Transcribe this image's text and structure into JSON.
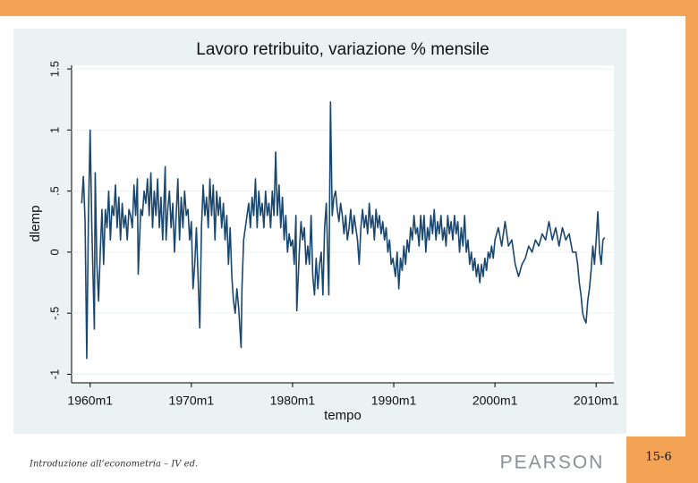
{
  "chart_data": {
    "type": "line",
    "title": "Lavoro retribuito, variazione % mensile",
    "xlabel": "tempo",
    "ylabel": "dlemp",
    "color": "#1a476f",
    "grid": true,
    "xlim": [
      -22,
      621
    ],
    "ylim": [
      -1.07,
      1.53
    ],
    "xticks": [
      {
        "value": 0,
        "label": "1960m1"
      },
      {
        "value": 120,
        "label": "1970m1"
      },
      {
        "value": 240,
        "label": "1980m1"
      },
      {
        "value": 360,
        "label": "1990m1"
      },
      {
        "value": 480,
        "label": "2000m1"
      },
      {
        "value": 600,
        "label": "2010m1"
      }
    ],
    "yticks": [
      {
        "value": -1,
        "label": "-1"
      },
      {
        "value": -0.5,
        "label": "-.5"
      },
      0,
      {
        "value": 0.5,
        "label": ".5"
      },
      1,
      1.5
    ],
    "x": [
      -10,
      -8,
      -6,
      -4,
      -2,
      0,
      2,
      5,
      6,
      8,
      10,
      12,
      14,
      16,
      18,
      20,
      22,
      24,
      26,
      28,
      30,
      32,
      34,
      36,
      38,
      40,
      42,
      44,
      46,
      48,
      50,
      52,
      54,
      56,
      57,
      60,
      62,
      64,
      66,
      68,
      70,
      72,
      74,
      76,
      78,
      80,
      82,
      84,
      86,
      89,
      90,
      92,
      94,
      96,
      98,
      100,
      102,
      104,
      106,
      108,
      110,
      112,
      114,
      116,
      118,
      120,
      122,
      124,
      126,
      130,
      132,
      134,
      136,
      138,
      140,
      142,
      144,
      146,
      148,
      150,
      152,
      154,
      156,
      158,
      160,
      162,
      164,
      166,
      168,
      170,
      172,
      174,
      176,
      179,
      180,
      182,
      184,
      186,
      188,
      190,
      192,
      194,
      196,
      198,
      200,
      202,
      204,
      206,
      208,
      210,
      212,
      214,
      216,
      218,
      220,
      222,
      224,
      226,
      228,
      230,
      232,
      234,
      236,
      238,
      240,
      242,
      244,
      245,
      248,
      250,
      252,
      254,
      256,
      258,
      260,
      262,
      264,
      266,
      268,
      270,
      272,
      274,
      276,
      278,
      280,
      283,
      285,
      287,
      289,
      291,
      293,
      295,
      297,
      299,
      301,
      303,
      305,
      307,
      309,
      311,
      313,
      315,
      317,
      319,
      321,
      323,
      325,
      327,
      329,
      331,
      333,
      335,
      337,
      339,
      341,
      343,
      345,
      347,
      349,
      351,
      353,
      355,
      357,
      359,
      360,
      362,
      364,
      366,
      368,
      370,
      372,
      374,
      376,
      378,
      380,
      382,
      384,
      386,
      388,
      390,
      392,
      394,
      396,
      398,
      400,
      402,
      404,
      406,
      408,
      410,
      412,
      414,
      416,
      418,
      420,
      422,
      424,
      426,
      428,
      430,
      432,
      434,
      436,
      438,
      440,
      442,
      444,
      446,
      448,
      450,
      452,
      454,
      456,
      458,
      460,
      462,
      464,
      466,
      468,
      470,
      472,
      474,
      476,
      478,
      480,
      484,
      488,
      492,
      496,
      500,
      504,
      508,
      512,
      516,
      520,
      524,
      528,
      532,
      536,
      540,
      544,
      548,
      552,
      556,
      560,
      564,
      568,
      572,
      576,
      578,
      580,
      582,
      584,
      586,
      588,
      590,
      592,
      594,
      596,
      598,
      600,
      602,
      604,
      606,
      608,
      610
    ],
    "values": [
      0.4,
      0.62,
      0.25,
      -0.87,
      0.3,
      1.0,
      0.2,
      -0.63,
      0.65,
      -0.1,
      -0.4,
      0.0,
      0.35,
      -0.1,
      0.35,
      0.2,
      0.5,
      0.1,
      0.38,
      0.3,
      0.55,
      0.2,
      0.45,
      0.1,
      0.4,
      0.2,
      0.3,
      0.1,
      0.35,
      0.3,
      0.2,
      0.55,
      0.3,
      0.6,
      -0.18,
      0.35,
      0.3,
      0.5,
      0.4,
      0.6,
      0.3,
      0.65,
      0.2,
      0.5,
      0.3,
      0.6,
      0.2,
      0.45,
      0.1,
      0.7,
      0.1,
      0.35,
      0.5,
      0.2,
      0.4,
      0.0,
      0.3,
      0.6,
      0.1,
      0.45,
      0.2,
      0.5,
      0.3,
      0.35,
      0.1,
      0.25,
      -0.3,
      -0.1,
      0.2,
      -0.62,
      0.2,
      0.55,
      0.3,
      0.45,
      0.2,
      0.6,
      0.3,
      0.55,
      0.1,
      0.5,
      0.3,
      0.45,
      0.2,
      0.4,
      0.1,
      0.3,
      -0.1,
      0.2,
      -0.2,
      -0.4,
      -0.5,
      -0.3,
      -0.45,
      -0.78,
      -0.3,
      0.1,
      0.2,
      0.3,
      0.4,
      0.2,
      0.45,
      0.3,
      0.6,
      0.2,
      0.5,
      0.3,
      0.4,
      0.2,
      0.5,
      0.3,
      0.4,
      0.2,
      0.5,
      0.3,
      0.82,
      0.3,
      0.55,
      0.2,
      0.45,
      0.1,
      0.3,
      0.0,
      0.15,
      0.05,
      0.1,
      -0.1,
      0.3,
      -0.48,
      0.0,
      0.25,
      0.1,
      0.2,
      -0.1,
      0.05,
      -0.1,
      0.3,
      -0.2,
      -0.35,
      -0.05,
      -0.3,
      -0.1,
      0.0,
      -0.35,
      0.2,
      0.4,
      -0.35,
      1.23,
      0.3,
      0.45,
      0.5,
      0.35,
      0.25,
      0.4,
      0.3,
      0.15,
      0.3,
      0.1,
      0.2,
      0.35,
      0.15,
      0.3,
      0.2,
      0.1,
      -0.1,
      0.2,
      0.35,
      0.2,
      0.3,
      0.15,
      0.4,
      0.2,
      0.3,
      0.1,
      0.35,
      0.2,
      0.3,
      0.15,
      0.25,
      0.1,
      0.2,
      0.0,
      0.1,
      -0.1,
      -0.05,
      -0.1,
      -0.2,
      0.0,
      -0.3,
      -0.05,
      -0.15,
      0.05,
      -0.1,
      0.1,
      0.0,
      0.2,
      0.1,
      0.3,
      0.15,
      0.2,
      0.05,
      0.3,
      0.1,
      0.3,
      0.0,
      0.2,
      0.1,
      0.3,
      0.15,
      0.35,
      0.1,
      0.25,
      0.15,
      0.3,
      0.1,
      0.2,
      0.05,
      0.3,
      0.15,
      0.25,
      0.1,
      0.3,
      0.15,
      0.25,
      0.0,
      0.2,
      0.05,
      0.3,
      0.0,
      0.1,
      -0.1,
      0.0,
      -0.15,
      -0.05,
      -0.2,
      -0.1,
      -0.25,
      -0.1,
      -0.2,
      -0.05,
      -0.15,
      0.0,
      -0.05,
      0.05,
      -0.05,
      0.1,
      0.2,
      0.05,
      0.25,
      0.05,
      0.1,
      -0.1,
      -0.2,
      -0.1,
      -0.05,
      0.05,
      0.0,
      0.1,
      0.05,
      0.15,
      0.1,
      0.25,
      0.1,
      0.2,
      0.05,
      0.2,
      0.1,
      0.15,
      0.0,
      0.0,
      -0.1,
      -0.25,
      -0.35,
      -0.5,
      -0.55,
      -0.58,
      -0.4,
      -0.3,
      -0.15,
      0.05,
      -0.1,
      0.1,
      0.33,
      0.0,
      -0.1,
      0.1,
      0.12
    ]
  },
  "footer": {
    "left": "Introduzione all’econometria – IV ed.",
    "brand": "PEARSON",
    "page": "15-6"
  }
}
